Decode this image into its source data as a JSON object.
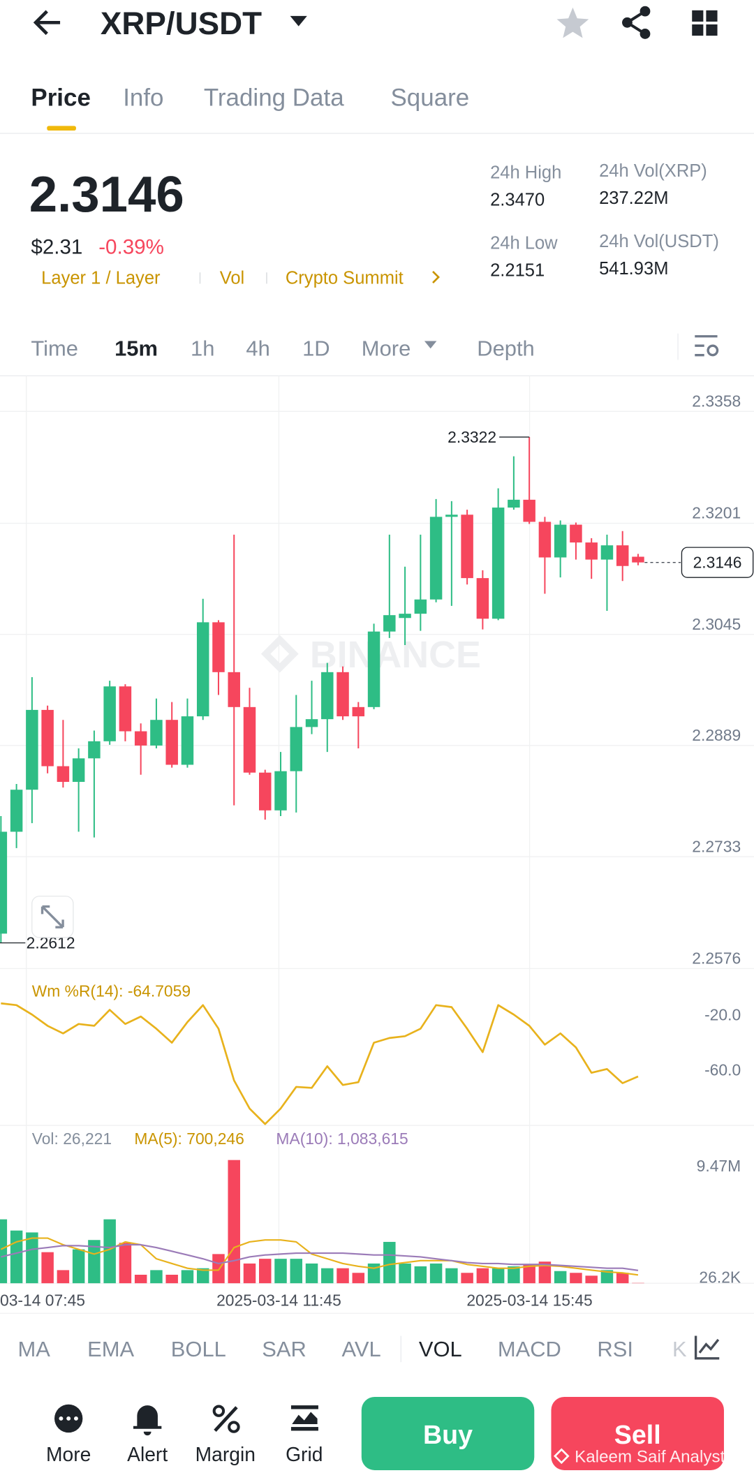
{
  "header": {
    "pair": "XRP/USDT"
  },
  "tabs": [
    "Price",
    "Info",
    "Trading Data",
    "Square"
  ],
  "ticker": {
    "price": "2.3146",
    "usd": "$2.31",
    "change": "-0.39%",
    "tags": [
      "Layer 1 / Layer",
      "Vol",
      "Crypto Summit"
    ],
    "stats": [
      {
        "label": "24h High",
        "value": "2.3470"
      },
      {
        "label": "24h Vol(XRP)",
        "value": "237.22M"
      },
      {
        "label": "24h Low",
        "value": "2.2151"
      },
      {
        "label": "24h Vol(USDT)",
        "value": "541.93M"
      }
    ]
  },
  "intervals": [
    "Time",
    "15m",
    "1h",
    "4h",
    "1D",
    "More",
    "Depth"
  ],
  "chart_watermark": "BINANCE",
  "chart_data": [
    {
      "type": "candlestick",
      "open": [
        2.2625,
        2.2768,
        2.2827,
        2.2939,
        2.286,
        2.2838,
        2.2871,
        2.2895,
        2.2972,
        2.2909,
        2.2889,
        2.2925,
        2.2862,
        2.293,
        2.3062,
        2.2992,
        2.2943,
        2.2851,
        2.2798,
        2.2853,
        2.2915,
        2.2926,
        2.2992,
        2.2943,
        2.2943,
        2.3049,
        2.3068,
        2.3074,
        2.3094,
        2.321,
        2.3213,
        2.3124,
        2.3067,
        2.3223,
        2.3234,
        2.3203,
        2.3153,
        2.3199,
        2.3174,
        2.315,
        2.317,
        2.3154
      ],
      "high": [
        2.279,
        2.2835,
        2.2985,
        2.2945,
        2.2925,
        2.2885,
        2.291,
        2.298,
        2.2975,
        2.292,
        2.2955,
        2.295,
        2.2955,
        2.3095,
        2.3065,
        2.3185,
        2.297,
        2.2855,
        2.288,
        2.296,
        2.298,
        2.3005,
        2.3,
        2.295,
        2.306,
        2.3185,
        2.314,
        2.3185,
        2.3235,
        2.3232,
        2.322,
        2.3135,
        2.325,
        2.3295,
        2.3322,
        2.321,
        2.3205,
        2.3202,
        2.318,
        2.3185,
        2.319,
        2.3158
      ],
      "low": [
        2.2612,
        2.2745,
        2.278,
        2.285,
        2.283,
        2.2768,
        2.276,
        2.289,
        2.2895,
        2.2848,
        2.2885,
        2.2858,
        2.2858,
        2.2925,
        2.296,
        2.2805,
        2.2848,
        2.2785,
        2.279,
        2.2795,
        2.2905,
        2.288,
        2.2925,
        2.2885,
        2.294,
        2.304,
        2.303,
        2.305,
        2.309,
        2.3085,
        2.3115,
        2.3052,
        2.3065,
        2.322,
        2.32,
        2.3102,
        2.3125,
        2.315,
        2.3123,
        2.3078,
        2.312,
        2.3142
      ],
      "close": [
        2.2768,
        2.2827,
        2.2939,
        2.286,
        2.2838,
        2.2871,
        2.2895,
        2.2972,
        2.2909,
        2.2889,
        2.2925,
        2.2862,
        2.293,
        2.3062,
        2.2992,
        2.2943,
        2.2851,
        2.2798,
        2.2853,
        2.2915,
        2.2926,
        2.2992,
        2.293,
        2.293,
        2.3049,
        2.3072,
        2.3074,
        2.3094,
        2.321,
        2.3213,
        2.3124,
        2.3067,
        2.3223,
        2.3234,
        2.3203,
        2.3153,
        2.3199,
        2.3174,
        2.315,
        2.317,
        2.3141,
        2.3146
      ],
      "up_color": "#2ebd85",
      "down_color": "#f6465d",
      "ylim": [
        2.2576,
        2.3408
      ],
      "yticks": [
        2.3358,
        2.3201,
        2.3045,
        2.2889,
        2.2733,
        2.2576
      ],
      "grid": true,
      "high_marker": 2.3322,
      "low_marker": 2.2612,
      "last_price": 2.3146,
      "x_labels": [
        "03-14 07:45",
        "2025-03-14 11:45",
        "2025-03-14 15:45"
      ]
    },
    {
      "type": "line",
      "label": "Wm %R(14): -64.7059",
      "color": "#e8b21c",
      "values": [
        -11.9,
        -13.2,
        -20,
        -28.1,
        -33.6,
        -26.8,
        -28.1,
        -16.6,
        -26.8,
        -21.4,
        -30.2,
        -40.3,
        -25.4,
        -13.2,
        -30.2,
        -67.5,
        -87.8,
        -99,
        -87.8,
        -72.2,
        -72.9,
        -57.3,
        -70.8,
        -68.8,
        -40.3,
        -36.9,
        -35.6,
        -30.2,
        -13.2,
        -14.6,
        -30.2,
        -47.1,
        -13.2,
        -20,
        -28.1,
        -41.7,
        -33.6,
        -43.7,
        -62,
        -59.3,
        -69.5,
        -64.7059
      ],
      "ylim": [
        -100,
        0
      ],
      "yticks": [
        {
          "value": -20,
          "label": "-20.0"
        },
        {
          "value": -60,
          "label": "-60.0"
        }
      ]
    },
    {
      "type": "bar",
      "label": "Vol: 26,221",
      "values": [
        5.41,
        4.46,
        4.3,
        2.63,
        1.11,
        2.87,
        3.66,
        5.41,
        3.42,
        0.72,
        1.11,
        0.72,
        1.11,
        1.27,
        2.47,
        10.43,
        1.67,
        2.07,
        2.07,
        2.07,
        1.67,
        1.27,
        1.27,
        0.88,
        1.67,
        3.5,
        1.67,
        1.43,
        1.67,
        1.27,
        0.88,
        1.27,
        1.27,
        1.43,
        1.59,
        1.83,
        1.03,
        0.88,
        0.64,
        1.11,
        0.88,
        0.026221
      ],
      "series": [
        {
          "name": "MA(5): 700,246",
          "color": "#e8b21c",
          "values": [
            2.87,
            3.5,
            3.82,
            3.82,
            3.26,
            2.87,
            2.47,
            2.87,
            3.5,
            3.26,
            2.07,
            1.67,
            1.27,
            1.11,
            1.11,
            3.02,
            3.5,
            3.66,
            3.66,
            3.5,
            2.47,
            2.07,
            1.67,
            1.43,
            1.27,
            1.59,
            1.75,
            1.91,
            1.91,
            1.91,
            1.59,
            1.43,
            1.27,
            1.27,
            1.43,
            1.51,
            1.43,
            1.27,
            1.11,
            0.96,
            0.88,
            0.700246
          ]
        },
        {
          "name": "MA(10): 1,083,615",
          "color": "#9b7bb8",
          "values": [
            2.23,
            2.55,
            2.87,
            3.02,
            3.18,
            3.18,
            3.1,
            3.02,
            3.26,
            3.26,
            3.02,
            2.71,
            2.39,
            2.07,
            1.67,
            1.91,
            2.23,
            2.39,
            2.47,
            2.55,
            2.55,
            2.55,
            2.55,
            2.47,
            2.39,
            2.39,
            2.31,
            2.23,
            2.07,
            1.91,
            1.75,
            1.67,
            1.67,
            1.59,
            1.59,
            1.59,
            1.51,
            1.43,
            1.35,
            1.27,
            1.27,
            1.083615
          ]
        }
      ],
      "ylim": [
        0,
        13.2
      ],
      "yticks": [
        {
          "value": 9.47,
          "label": "9.47M"
        },
        {
          "value": 0.0262,
          "label": "26.2K"
        }
      ]
    }
  ],
  "indicators": [
    "MA",
    "EMA",
    "BOLL",
    "SAR",
    "AVL",
    "VOL",
    "MACD",
    "RSI",
    "K"
  ],
  "actions": [
    "More",
    "Alert",
    "Margin",
    "Grid"
  ],
  "buy": "Buy",
  "sell": "Sell",
  "watermark": "Kaleem Saif Analyst"
}
